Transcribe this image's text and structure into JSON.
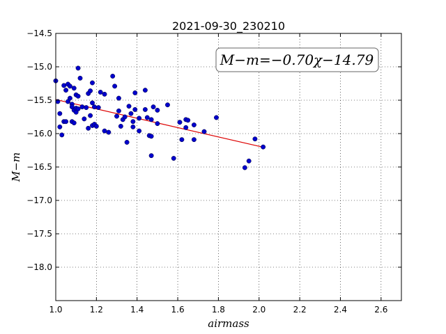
{
  "chart_data": {
    "type": "scatter",
    "title": "2021-09-30_230210",
    "xlabel": "airmass",
    "ylabel": "M−m",
    "xlim": [
      1.0,
      2.7
    ],
    "ylim": [
      -18.5,
      -14.5
    ],
    "y_inverted": true,
    "grid": true,
    "x_ticks": [
      1.0,
      1.2,
      1.4,
      1.6,
      1.8,
      2.0,
      2.2,
      2.4,
      2.6
    ],
    "x_tick_labels": [
      "1.0",
      "1.2",
      "1.4",
      "1.6",
      "1.8",
      "2.0",
      "2.2",
      "2.4",
      "2.6"
    ],
    "y_ticks": [
      -18.0,
      -17.5,
      -17.0,
      -16.5,
      -16.0,
      -15.5,
      -15.0,
      -14.5
    ],
    "y_tick_labels": [
      "−18.0",
      "−17.5",
      "−17.0",
      "−16.5",
      "−16.0",
      "−15.5",
      "−15.0",
      "−14.5"
    ],
    "annotation": "M−m=−0.70χ−14.79",
    "point_color": "#0000cc",
    "fit_color": "#dd0000",
    "fit": {
      "slope": -0.7,
      "intercept": -14.79,
      "x_range": [
        1.0,
        2.02
      ]
    },
    "points": [
      {
        "x": 1.0,
        "y": -15.21
      },
      {
        "x": 1.01,
        "y": -15.52
      },
      {
        "x": 1.02,
        "y": -15.7
      },
      {
        "x": 1.02,
        "y": -15.9
      },
      {
        "x": 1.03,
        "y": -16.02
      },
      {
        "x": 1.04,
        "y": -15.82
      },
      {
        "x": 1.04,
        "y": -15.28
      },
      {
        "x": 1.05,
        "y": -15.82
      },
      {
        "x": 1.05,
        "y": -15.35
      },
      {
        "x": 1.06,
        "y": -15.26
      },
      {
        "x": 1.06,
        "y": -15.52
      },
      {
        "x": 1.07,
        "y": -15.29
      },
      {
        "x": 1.07,
        "y": -15.47
      },
      {
        "x": 1.08,
        "y": -15.56
      },
      {
        "x": 1.08,
        "y": -15.82
      },
      {
        "x": 1.08,
        "y": -15.6
      },
      {
        "x": 1.09,
        "y": -15.84
      },
      {
        "x": 1.09,
        "y": -15.65
      },
      {
        "x": 1.09,
        "y": -15.32
      },
      {
        "x": 1.1,
        "y": -15.42
      },
      {
        "x": 1.1,
        "y": -15.62
      },
      {
        "x": 1.1,
        "y": -15.68
      },
      {
        "x": 1.11,
        "y": -15.02
      },
      {
        "x": 1.11,
        "y": -15.44
      },
      {
        "x": 1.11,
        "y": -15.63
      },
      {
        "x": 1.12,
        "y": -15.17
      },
      {
        "x": 1.13,
        "y": -15.6
      },
      {
        "x": 1.14,
        "y": -15.78
      },
      {
        "x": 1.15,
        "y": -15.61
      },
      {
        "x": 1.16,
        "y": -15.92
      },
      {
        "x": 1.16,
        "y": -15.4
      },
      {
        "x": 1.17,
        "y": -15.36
      },
      {
        "x": 1.17,
        "y": -15.73
      },
      {
        "x": 1.18,
        "y": -15.54
      },
      {
        "x": 1.18,
        "y": -15.24
      },
      {
        "x": 1.18,
        "y": -15.88
      },
      {
        "x": 1.19,
        "y": -15.6
      },
      {
        "x": 1.19,
        "y": -15.86
      },
      {
        "x": 1.2,
        "y": -15.89
      },
      {
        "x": 1.21,
        "y": -15.61
      },
      {
        "x": 1.22,
        "y": -15.38
      },
      {
        "x": 1.24,
        "y": -15.41
      },
      {
        "x": 1.24,
        "y": -15.96
      },
      {
        "x": 1.26,
        "y": -15.98
      },
      {
        "x": 1.28,
        "y": -15.14
      },
      {
        "x": 1.29,
        "y": -15.29
      },
      {
        "x": 1.3,
        "y": -15.74
      },
      {
        "x": 1.31,
        "y": -15.47
      },
      {
        "x": 1.31,
        "y": -15.66
      },
      {
        "x": 1.32,
        "y": -15.89
      },
      {
        "x": 1.33,
        "y": -15.79
      },
      {
        "x": 1.34,
        "y": -15.75
      },
      {
        "x": 1.35,
        "y": -16.13
      },
      {
        "x": 1.36,
        "y": -15.59
      },
      {
        "x": 1.37,
        "y": -15.7
      },
      {
        "x": 1.38,
        "y": -15.82
      },
      {
        "x": 1.38,
        "y": -15.9
      },
      {
        "x": 1.39,
        "y": -15.39
      },
      {
        "x": 1.39,
        "y": -15.64
      },
      {
        "x": 1.41,
        "y": -15.96
      },
      {
        "x": 1.41,
        "y": -15.77
      },
      {
        "x": 1.44,
        "y": -15.35
      },
      {
        "x": 1.44,
        "y": -15.64
      },
      {
        "x": 1.45,
        "y": -15.76
      },
      {
        "x": 1.46,
        "y": -16.03
      },
      {
        "x": 1.47,
        "y": -15.79
      },
      {
        "x": 1.47,
        "y": -16.04
      },
      {
        "x": 1.47,
        "y": -16.33
      },
      {
        "x": 1.48,
        "y": -15.6
      },
      {
        "x": 1.5,
        "y": -15.65
      },
      {
        "x": 1.5,
        "y": -15.85
      },
      {
        "x": 1.55,
        "y": -15.57
      },
      {
        "x": 1.58,
        "y": -16.37
      },
      {
        "x": 1.61,
        "y": -15.83
      },
      {
        "x": 1.62,
        "y": -16.09
      },
      {
        "x": 1.64,
        "y": -15.79
      },
      {
        "x": 1.64,
        "y": -15.91
      },
      {
        "x": 1.65,
        "y": -15.8
      },
      {
        "x": 1.68,
        "y": -15.87
      },
      {
        "x": 1.68,
        "y": -16.09
      },
      {
        "x": 1.73,
        "y": -15.97
      },
      {
        "x": 1.79,
        "y": -15.76
      },
      {
        "x": 1.93,
        "y": -16.51
      },
      {
        "x": 1.95,
        "y": -16.41
      },
      {
        "x": 1.98,
        "y": -16.08
      },
      {
        "x": 2.02,
        "y": -16.2
      }
    ]
  }
}
